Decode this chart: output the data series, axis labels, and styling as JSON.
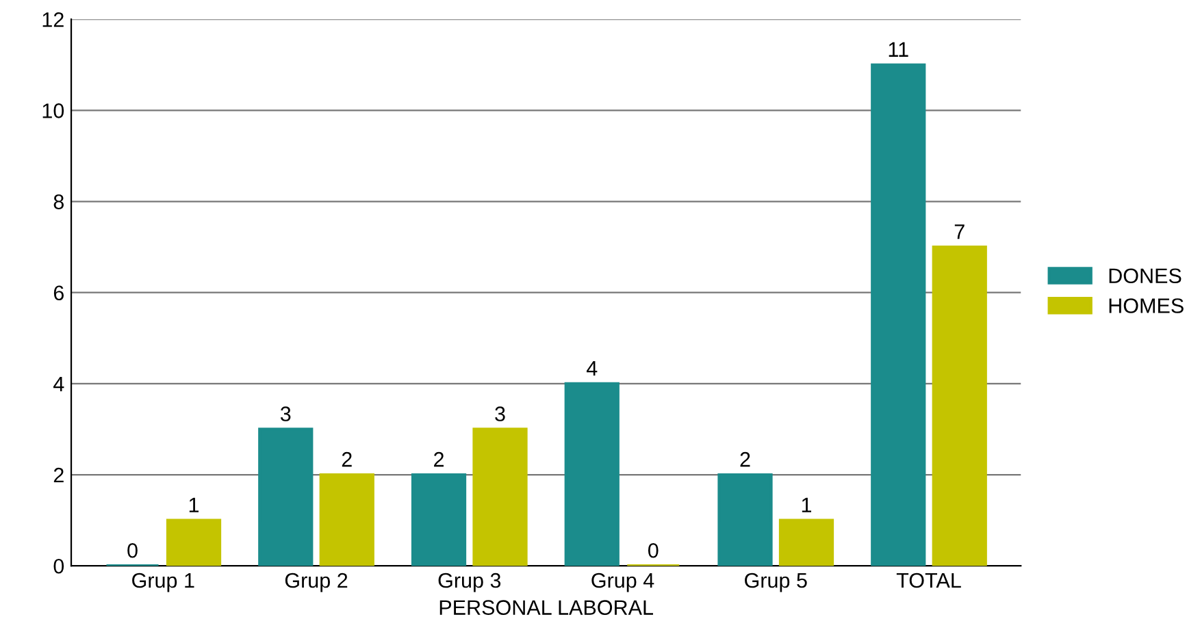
{
  "chart_data": {
    "type": "bar",
    "xlabel": "PERSONAL LABORAL",
    "categories": [
      "Grup 1",
      "Grup 2",
      "Grup 3",
      "Grup 4",
      "Grup 5",
      "TOTAL"
    ],
    "series": [
      {
        "name": "DONES",
        "color": "#1b8c8c",
        "values": [
          0,
          3,
          2,
          4,
          2,
          11
        ]
      },
      {
        "name": "HOMES",
        "color": "#c4c400",
        "values": [
          1,
          2,
          3,
          0,
          1,
          7
        ]
      }
    ],
    "ylim": [
      0,
      12
    ],
    "yticks": [
      0,
      2,
      4,
      6,
      8,
      10,
      12
    ],
    "grid": "y",
    "legend": "right",
    "data_labels": true
  }
}
